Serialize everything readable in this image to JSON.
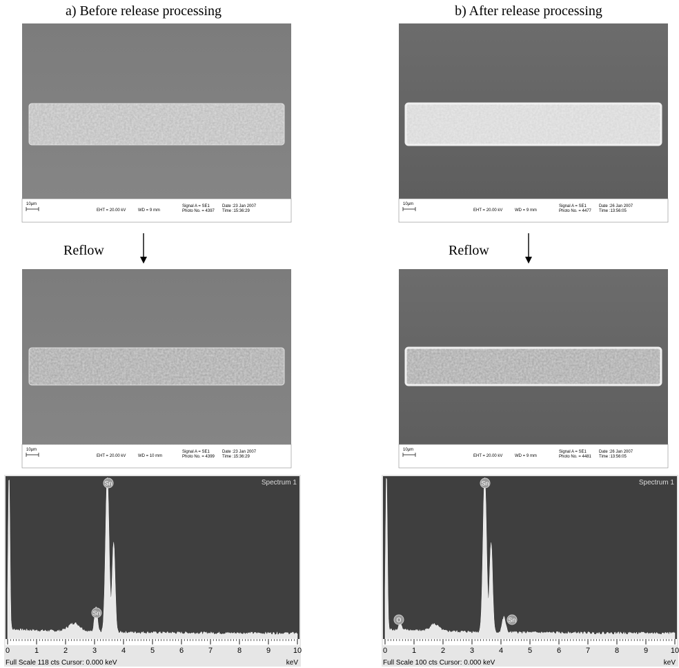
{
  "panels": [
    {
      "title": "a) Before release processing",
      "images": [
        {
          "scale": "10µm",
          "eht": "EHT = 20.00 kV",
          "wd": "WD =  9 mm",
          "signal": "Signal A = SE1",
          "photo": "Photo No. = 4397",
          "date": "Date :23 Jan 2007",
          "time": "Time :15:36:29"
        },
        {
          "scale": "10µm",
          "eht": "EHT = 20.00 kV",
          "wd": "WD =  10 mm",
          "signal": "Signal A = SE1",
          "photo": "Photo No. = 4399",
          "date": "Date :23 Jan 2007",
          "time": "Time :15:36:29"
        }
      ],
      "step": "Reflow",
      "spectrum": {
        "title": "Spectrum 1",
        "peaks": [
          "Sn",
          "Sn"
        ],
        "xticks": [
          0,
          1,
          2,
          3,
          4,
          5,
          6,
          7,
          8,
          9,
          10
        ],
        "unit": "keV",
        "footer": "Full Scale 118 cts  Cursor: 0.000 keV"
      }
    },
    {
      "title": "b) After release processing",
      "images": [
        {
          "scale": "10µm",
          "eht": "EHT = 20.00 kV",
          "wd": "WD =  9 mm",
          "signal": "Signal A = SE1",
          "photo": "Photo No. = 4477",
          "date": "Date :26 Jan 2007",
          "time": "Time :13:56:05"
        },
        {
          "scale": "10µm",
          "eht": "EHT = 20.00 kV",
          "wd": "WD =  9 mm",
          "signal": "Signal A = SE1",
          "photo": "Photo No. = 4481",
          "date": "Date :26 Jan 2007",
          "time": "Time :13:56:05"
        }
      ],
      "step": "Reflow",
      "spectrum": {
        "title": "Spectrum 1",
        "peaks": [
          "O",
          "Sn",
          "Sn"
        ],
        "xticks": [
          0,
          1,
          2,
          3,
          4,
          5,
          6,
          7,
          8,
          9,
          10
        ],
        "unit": "keV",
        "footer": "Full Scale 100 cts  Cursor: 0.000 keV"
      }
    }
  ]
}
